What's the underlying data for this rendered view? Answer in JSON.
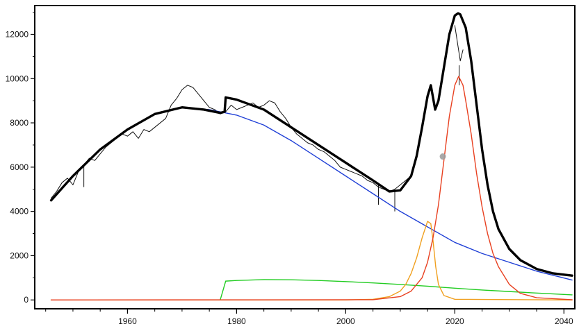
{
  "chart_data": {
    "type": "line",
    "title": "",
    "xlabel": "",
    "ylabel": "",
    "xlim": [
      1943,
      2042
    ],
    "ylim": [
      -400,
      13300
    ],
    "grid": false,
    "legend": "none",
    "x_ticks": [
      1960,
      1980,
      2000,
      2020,
      2040
    ],
    "y_ticks": [
      0,
      2000,
      4000,
      6000,
      8000,
      10000,
      12000
    ],
    "x_tick_labels": [
      "1960",
      "1980",
      "2000",
      "2020",
      "2040"
    ],
    "y_tick_labels": [
      "0",
      "2000",
      "4000",
      "6000",
      "8000",
      "10000",
      "12000"
    ],
    "series": [
      {
        "color": "#111111",
        "style": "thin-noisy-data",
        "x": [
          1946,
          1947,
          1948,
          1949,
          1950,
          1951,
          1952,
          1953,
          1954,
          1955,
          1956,
          1957,
          1958,
          1959,
          1960,
          1961,
          1962,
          1963,
          1964,
          1965,
          1966,
          1967,
          1968,
          1969,
          1970,
          1971,
          1972,
          1973,
          1974,
          1975,
          1976,
          1977,
          1978,
          1979,
          1980,
          1981,
          1982,
          1983,
          1984,
          1985,
          1986,
          1987,
          1988,
          1989,
          1990,
          1991,
          1992,
          1993,
          1994,
          1995,
          1996,
          1997,
          1998,
          1999,
          2000,
          2001,
          2002,
          2003,
          2004,
          2005,
          2006,
          2007,
          2008,
          2009,
          2010,
          2011,
          2012,
          2013,
          2014,
          2015,
          2016,
          2017,
          2018,
          2019,
          2020,
          2021,
          2021.5
        ],
        "y": [
          4600,
          4900,
          5300,
          5500,
          5200,
          5800,
          6100,
          6400,
          6300,
          6600,
          6900,
          7100,
          7300,
          7500,
          7400,
          7600,
          7300,
          7700,
          7600,
          7800,
          8000,
          8200,
          8800,
          9100,
          9500,
          9700,
          9600,
          9300,
          9000,
          8700,
          8600,
          8400,
          8500,
          8800,
          8600,
          8700,
          8800,
          8900,
          8700,
          8800,
          9000,
          8900,
          8500,
          8200,
          7800,
          7500,
          7300,
          7100,
          7000,
          6800,
          6700,
          6500,
          6300,
          6000,
          5900,
          5800,
          5700,
          5600,
          5400,
          5300,
          5100,
          5000,
          4900,
          5000,
          5200,
          5400,
          5600,
          null,
          null,
          null,
          null,
          null,
          null,
          null,
          12400,
          10800,
          11300
        ],
        "spikes": [
          {
            "x": 1952,
            "y": 5100
          },
          {
            "x": 2006,
            "y": 4300
          },
          {
            "x": 2009,
            "y": 4000
          },
          {
            "x": 2020.8,
            "y": 9700
          }
        ]
      },
      {
        "color": "#000000",
        "style": "total-fit",
        "x": [
          1946,
          1950,
          1955,
          1960,
          1965,
          1970,
          1974,
          1977,
          1977.8,
          1978,
          1980,
          1985,
          1990,
          1995,
          2000,
          2005,
          2008,
          2010,
          2012,
          2013,
          2014,
          2015,
          2015.6,
          2016.4,
          2017,
          2018,
          2019,
          2020,
          2020.6,
          2021,
          2022,
          2023,
          2024,
          2025,
          2026,
          2027,
          2028,
          2030,
          2032,
          2035,
          2038,
          2041.5
        ],
        "y": [
          4500,
          5600,
          6800,
          7700,
          8400,
          8700,
          8600,
          8450,
          8500,
          9150,
          9050,
          8600,
          7800,
          7000,
          6200,
          5400,
          4900,
          4950,
          5600,
          6500,
          7800,
          9200,
          9700,
          8600,
          9000,
          10500,
          12000,
          12850,
          12950,
          12900,
          12300,
          10800,
          8800,
          6800,
          5200,
          4000,
          3200,
          2300,
          1800,
          1400,
          1200,
          1100
        ]
      },
      {
        "color": "#1f3fd6",
        "style": "component",
        "x": [
          1946,
          1950,
          1955,
          1960,
          1965,
          1970,
          1975,
          1980,
          1985,
          1990,
          1995,
          2000,
          2005,
          2010,
          2015,
          2020,
          2025,
          2030,
          2035,
          2041.5
        ],
        "y": [
          4500,
          5600,
          6800,
          7700,
          8400,
          8700,
          8600,
          8350,
          7900,
          7200,
          6400,
          5600,
          4800,
          4000,
          3300,
          2600,
          2100,
          1700,
          1300,
          900
        ]
      },
      {
        "color": "#22cc22",
        "style": "component",
        "x": [
          1946,
          1977,
          1978,
          1980,
          1985,
          1990,
          1995,
          2000,
          2005,
          2010,
          2015,
          2020,
          2025,
          2030,
          2035,
          2041.5
        ],
        "y": [
          0,
          0,
          850,
          880,
          920,
          910,
          880,
          830,
          770,
          700,
          620,
          530,
          450,
          380,
          310,
          230
        ]
      },
      {
        "color": "#f0a020",
        "style": "component",
        "x": [
          1946,
          2000,
          2005,
          2008,
          2010,
          2011,
          2012,
          2013,
          2014,
          2015,
          2015.6,
          2016,
          2016.5,
          2017,
          2018,
          2020,
          2041.5
        ],
        "y": [
          0,
          0,
          30,
          150,
          400,
          700,
          1200,
          1900,
          2800,
          3550,
          3450,
          2700,
          1500,
          700,
          200,
          30,
          0
        ]
      },
      {
        "color": "#e84020",
        "style": "component",
        "x": [
          1946,
          2005,
          2010,
          2012,
          2014,
          2015,
          2016,
          2017,
          2018,
          2019,
          2020,
          2020.7,
          2021.5,
          2022,
          2023,
          2024,
          2025,
          2026,
          2027,
          2028,
          2030,
          2032,
          2035,
          2041.5
        ],
        "y": [
          0,
          10,
          150,
          400,
          1000,
          1700,
          2800,
          4300,
          6300,
          8300,
          9700,
          10100,
          9700,
          9000,
          7500,
          5700,
          4200,
          3000,
          2100,
          1500,
          700,
          300,
          100,
          10
        ]
      }
    ],
    "annotations": [
      {
        "type": "point",
        "x": 2017.8,
        "y": 6480,
        "color": "#a0a0a0"
      }
    ]
  }
}
